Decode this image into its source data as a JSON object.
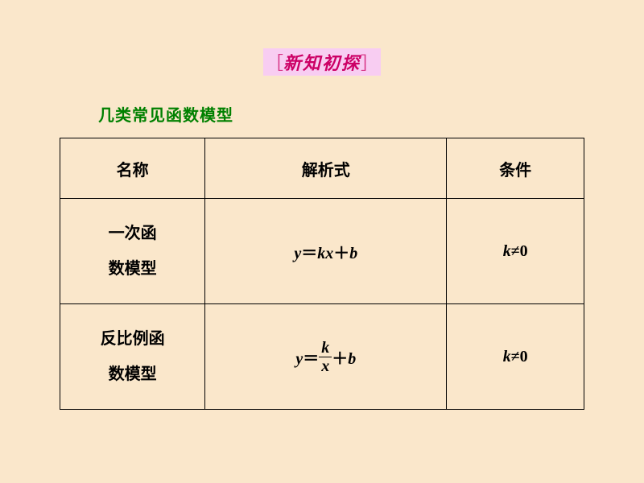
{
  "header": {
    "bracket_left": "［",
    "title": "新知初探",
    "bracket_right": "］"
  },
  "subtitle": "几类常见函数模型",
  "table": {
    "columns": [
      "名称",
      "解析式",
      "条件"
    ],
    "rows": [
      {
        "name_line1": "一次函",
        "name_line2": "数模型",
        "formula_y": "y",
        "formula_eq": "＝",
        "formula_k": "k",
        "formula_x": "x",
        "formula_plus": "＋",
        "formula_b": "b",
        "cond_k": "k",
        "cond_ne": "≠",
        "cond_zero": "0"
      },
      {
        "name_line1": "反比例函",
        "name_line2": "数模型",
        "formula_y": "y",
        "formula_eq": "＝",
        "frac_num": "k",
        "frac_den": "x",
        "formula_plus": "＋",
        "formula_b": "b",
        "cond_k": "k",
        "cond_ne": "≠",
        "cond_zero": "0"
      }
    ]
  },
  "style": {
    "background_color": "#fae7cb",
    "title_bg": "#f8cdf2",
    "title_color": "#cc0066",
    "subtitle_color": "#008000",
    "border_color": "#000000",
    "text_color": "#000000",
    "title_fontsize": 22,
    "subtitle_fontsize": 20,
    "cell_fontsize": 20
  }
}
